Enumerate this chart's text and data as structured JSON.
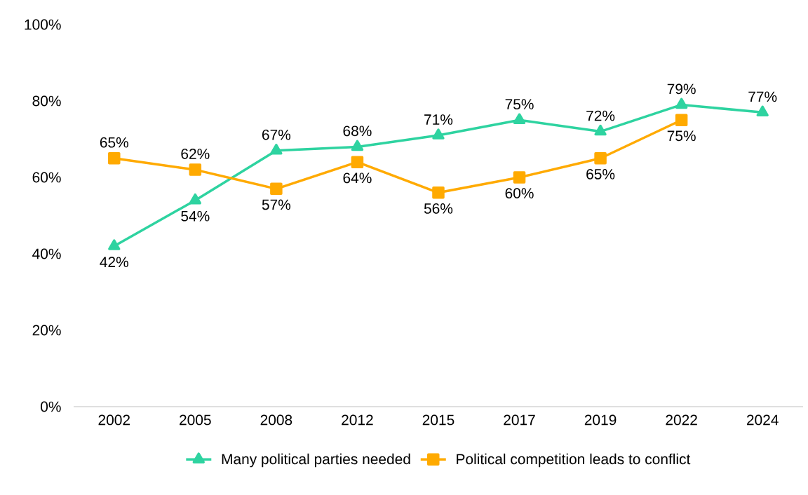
{
  "chart_data": {
    "type": "line",
    "categories": [
      "2002",
      "2005",
      "2008",
      "2012",
      "2015",
      "2017",
      "2019",
      "2022",
      "2024"
    ],
    "series": [
      {
        "name": "Many political parties needed",
        "color": "#2ed3a0",
        "marker": "triangle",
        "values": [
          42,
          54,
          67,
          68,
          71,
          75,
          72,
          79,
          77
        ],
        "value_labels": [
          "42%",
          "54%",
          "67%",
          "68%",
          "71%",
          "75%",
          "72%",
          "79%",
          "77%"
        ]
      },
      {
        "name": "Political competition leads to conflict",
        "color": "#ffaa00",
        "marker": "square",
        "values": [
          65,
          62,
          57,
          64,
          56,
          60,
          65,
          75,
          null
        ],
        "value_labels": [
          "65%",
          "62%",
          "57%",
          "64%",
          "56%",
          "60%",
          "65%",
          "75%",
          null
        ]
      }
    ],
    "ylim": [
      0,
      100
    ],
    "yticks": [
      {
        "value": 0,
        "label": "0%"
      },
      {
        "value": 20,
        "label": "20%"
      },
      {
        "value": 40,
        "label": "40%"
      },
      {
        "value": 60,
        "label": "60%"
      },
      {
        "value": 80,
        "label": "80%"
      },
      {
        "value": 100,
        "label": "100%"
      }
    ],
    "grid": false,
    "legend": "bottom",
    "line_style": "solid"
  }
}
